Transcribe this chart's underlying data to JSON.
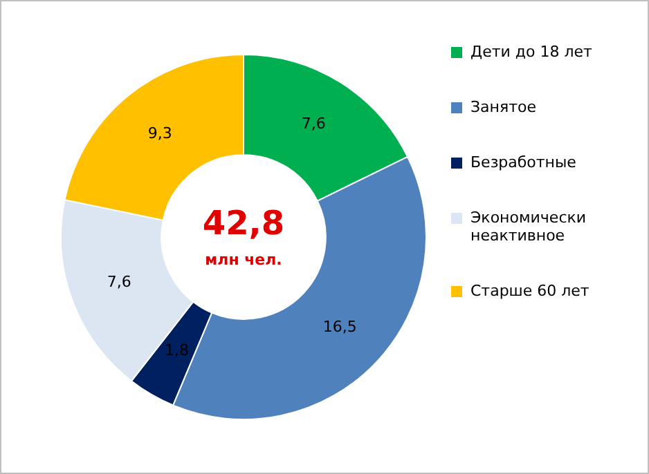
{
  "chart_data": {
    "type": "donut",
    "categories": [
      "Дети до 18 лет",
      "Занятое",
      "Безработные",
      "Экономически неактивное",
      "Старше 60 лет"
    ],
    "values": [
      7.6,
      16.5,
      1.8,
      7.6,
      9.3
    ],
    "colors": [
      "#00b050",
      "#4f81bd",
      "#002060",
      "#dce6f2",
      "#ffc000"
    ],
    "value_labels": [
      "7,6",
      "16,5",
      "1,8",
      "7,6",
      "9,3"
    ],
    "annotations": [
      "42,8",
      "млн чел."
    ],
    "legend": "right"
  }
}
